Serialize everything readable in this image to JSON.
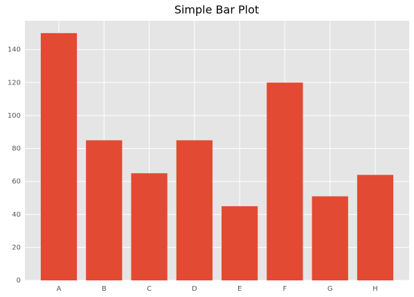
{
  "chart_data": {
    "type": "bar",
    "title": "Simple Bar Plot",
    "categories": [
      "A",
      "B",
      "C",
      "D",
      "E",
      "F",
      "G",
      "H"
    ],
    "values": [
      150,
      85,
      65,
      85,
      45,
      120,
      51,
      64
    ],
    "color": "#e24a33",
    "ylim": [
      0,
      157.5
    ],
    "yticks": [
      0,
      20,
      40,
      60,
      80,
      100,
      120,
      140
    ],
    "grid": true
  }
}
